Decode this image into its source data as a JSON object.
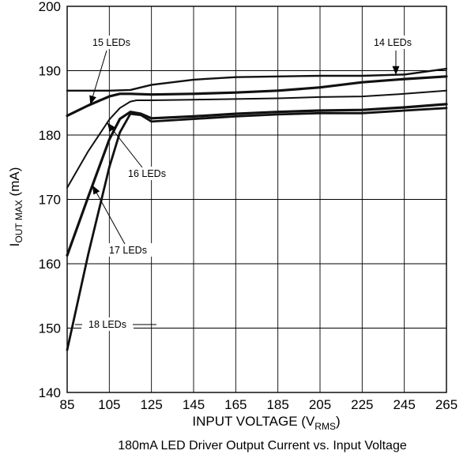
{
  "chart_data": {
    "type": "line",
    "title": "",
    "caption": "180mA LED Driver Output Current vs. Input Voltage",
    "xlabel": {
      "main": "INPUT VOLTAGE (V",
      "sub": "RMS",
      "close": ")"
    },
    "ylabel": {
      "main": "I",
      "sub": "OUT MAX",
      "unit": " (mA)"
    },
    "xlim": [
      85,
      265
    ],
    "ylim": [
      140,
      200
    ],
    "xticks": [
      85,
      105,
      125,
      145,
      165,
      185,
      205,
      225,
      245,
      265
    ],
    "yticks": [
      140,
      150,
      160,
      170,
      180,
      190,
      200
    ],
    "grid": true,
    "series": [
      {
        "name": "14 LEDs",
        "x": [
          85,
          105,
          115,
          125,
          145,
          165,
          185,
          205,
          225,
          245,
          265
        ],
        "y": [
          186.9,
          186.9,
          187.0,
          187.8,
          188.6,
          189.0,
          189.1,
          189.2,
          189.2,
          189.4,
          190.3
        ]
      },
      {
        "name": "15 LEDs",
        "x": [
          85,
          95,
          105,
          110,
          115,
          125,
          145,
          165,
          185,
          205,
          225,
          245,
          265
        ],
        "y": [
          183.0,
          184.6,
          186.0,
          186.4,
          186.4,
          186.3,
          186.4,
          186.6,
          186.9,
          187.4,
          188.2,
          188.7,
          189.1
        ]
      },
      {
        "name": "16 LEDs",
        "x": [
          85,
          95,
          105,
          110,
          115,
          118,
          125,
          145,
          165,
          185,
          205,
          225,
          245,
          265
        ],
        "y": [
          171.8,
          177.5,
          182.4,
          184.2,
          185.2,
          185.4,
          185.4,
          185.5,
          185.6,
          185.7,
          185.9,
          186.0,
          186.4,
          186.9
        ]
      },
      {
        "name": "17 LEDs",
        "x": [
          85,
          95,
          105,
          110,
          115,
          120,
          125,
          145,
          165,
          185,
          205,
          225,
          245,
          265
        ],
        "y": [
          161.3,
          170.4,
          179.3,
          182.5,
          183.6,
          183.3,
          182.6,
          182.9,
          183.3,
          183.6,
          183.8,
          183.9,
          184.3,
          184.8
        ]
      },
      {
        "name": "18 LEDs",
        "x": [
          85,
          95,
          105,
          110,
          115,
          120,
          125,
          145,
          165,
          185,
          205,
          225,
          245,
          265
        ],
        "y": [
          146.6,
          161.5,
          175.0,
          180.4,
          183.3,
          183.1,
          182.1,
          182.5,
          182.9,
          183.2,
          183.4,
          183.4,
          183.8,
          184.2
        ]
      }
    ],
    "annotations": [
      {
        "text": "15 LEDs",
        "series": "15 LEDs"
      },
      {
        "text": "14 LEDs",
        "series": "14 LEDs"
      },
      {
        "text": "16 LEDs",
        "series": "16 LEDs"
      },
      {
        "text": "17 LEDs",
        "series": "17 LEDs"
      },
      {
        "text": "18 LEDs",
        "series": "18 LEDs"
      }
    ]
  }
}
